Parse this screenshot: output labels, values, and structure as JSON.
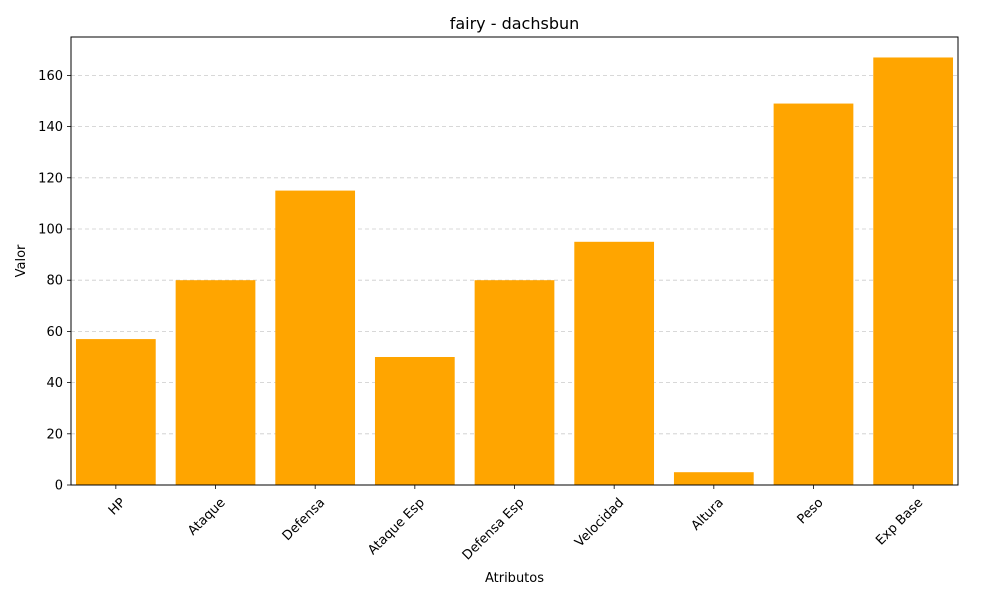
{
  "chart_data": {
    "type": "bar",
    "title": "fairy - dachsbun",
    "xlabel": "Atributos",
    "ylabel": "Valor",
    "categories": [
      "HP",
      "Ataque",
      "Defensa",
      "Ataque Esp",
      "Defensa Esp",
      "Velocidad",
      "Altura",
      "Peso",
      "Exp Base"
    ],
    "values": [
      57,
      80,
      115,
      50,
      80,
      95,
      5,
      149,
      167
    ],
    "ylim": [
      0,
      175
    ],
    "yticks": [
      0,
      20,
      40,
      60,
      80,
      100,
      120,
      140,
      160
    ],
    "grid": "y-dashed",
    "bar_color": "#FFA500"
  }
}
